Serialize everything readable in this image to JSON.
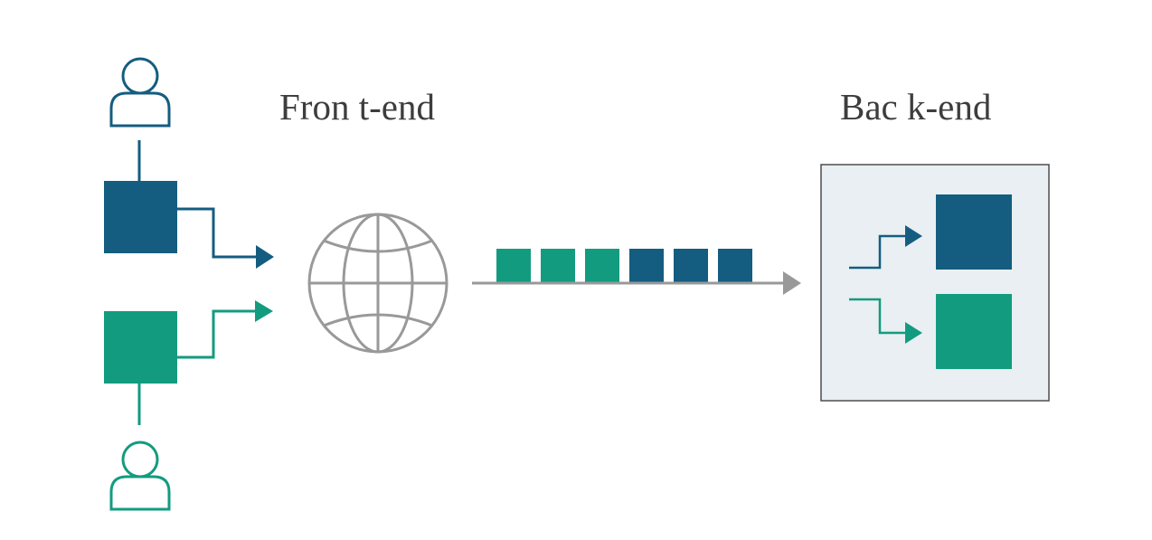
{
  "frontend": {
    "title": "Fron t-end"
  },
  "backend": {
    "title": "Bac k-end"
  },
  "colors": {
    "blue": "#145d80",
    "green": "#139b80",
    "gray": "#999999",
    "backend_fill": "#e9eff2",
    "backend_border": "#4d4d4d",
    "text": "#3d3d3d"
  },
  "queue": {
    "blocks": [
      "green",
      "green",
      "green",
      "blue",
      "blue",
      "blue"
    ]
  },
  "icons": {
    "user_top": "user-icon",
    "user_bottom": "user-icon",
    "network": "globe-icon"
  }
}
